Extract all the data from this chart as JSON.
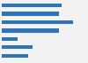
{
  "values": [
    185,
    175,
    220,
    175,
    50,
    95,
    80
  ],
  "bar_color": "#2e75b6",
  "background_color": "#f2f2f2",
  "plot_bg_color": "#f2f2f2",
  "xlim": [
    0,
    260
  ],
  "bar_height": 0.45,
  "figsize": [
    1.0,
    0.71
  ],
  "dpi": 100
}
